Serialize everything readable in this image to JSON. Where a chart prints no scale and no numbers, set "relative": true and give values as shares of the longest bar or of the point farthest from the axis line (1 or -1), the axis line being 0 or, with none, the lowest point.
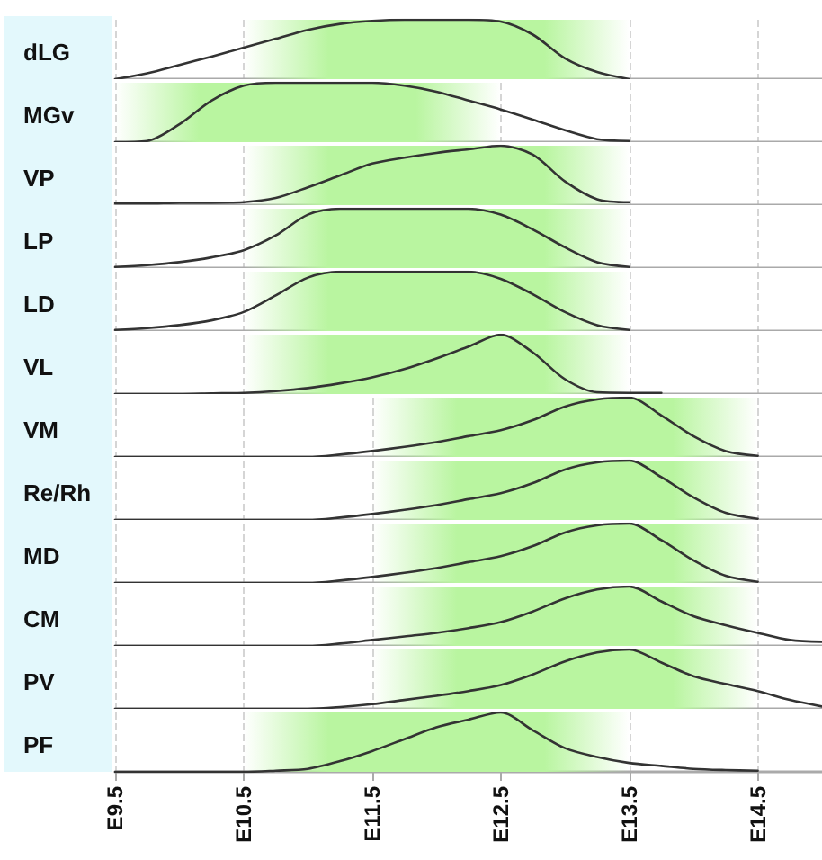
{
  "chart_data": [
    {
      "type": "line",
      "title": "dLG",
      "relative": true,
      "categories": [
        "E9.5",
        null,
        null,
        null,
        "E10.5",
        null,
        null,
        null,
        "E11.5",
        null,
        null,
        null,
        "E12.5",
        null,
        null,
        null,
        "E13.5",
        null,
        null,
        null,
        "E14.5",
        null,
        null
      ],
      "tick_labels": false,
      "grid": "x",
      "marker": "none",
      "line_style": "solid",
      "series": [
        {
          "color": "#333333",
          "values": [
            0,
            0.1,
            0.24,
            0.38,
            0.53,
            0.68,
            0.83,
            0.93,
            0.98,
            1,
            1,
            1,
            0.97,
            0.75,
            0.35,
            0.12,
            0,
            null,
            null,
            null,
            null,
            null,
            null
          ]
        }
      ],
      "bands": [
        {
          "axis": "x",
          "from": "E10.5",
          "to": "E13.5",
          "color": "#b9f5a0"
        }
      ]
    },
    {
      "type": "line",
      "title": "MGv",
      "relative": true,
      "categories": [
        "E9.5",
        null,
        null,
        null,
        "E10.5",
        null,
        null,
        null,
        "E11.5",
        null,
        null,
        null,
        "E12.5",
        null,
        null,
        null,
        "E13.5",
        null,
        null,
        null,
        "E14.5",
        null,
        null
      ],
      "tick_labels": false,
      "grid": "x",
      "marker": "none",
      "line_style": "solid",
      "series": [
        {
          "color": "#333333",
          "values": [
            0,
            0.02,
            0.3,
            0.7,
            0.95,
            1,
            1,
            1,
            1,
            0.95,
            0.85,
            0.7,
            0.55,
            0.38,
            0.2,
            0.05,
            0.02,
            null,
            null,
            null,
            null,
            null,
            null
          ]
        }
      ],
      "bands": [
        {
          "axis": "x",
          "from": "E9.5",
          "to": "E12.5",
          "color": "#b9f5a0"
        }
      ]
    },
    {
      "type": "line",
      "title": "VP",
      "relative": true,
      "categories": [
        "E9.5",
        null,
        null,
        null,
        "E10.5",
        null,
        null,
        null,
        "E11.5",
        null,
        null,
        null,
        "E12.5",
        null,
        null,
        null,
        "E13.5",
        null,
        null,
        null,
        "E14.5",
        null,
        null
      ],
      "tick_labels": false,
      "grid": "x",
      "marker": "none",
      "line_style": "solid",
      "series": [
        {
          "color": "#333333",
          "values": [
            0.03,
            0.03,
            0.04,
            0.04,
            0.05,
            0.12,
            0.3,
            0.5,
            0.7,
            0.8,
            0.88,
            0.94,
            1,
            0.85,
            0.4,
            0.1,
            0.05,
            null,
            null,
            null,
            null,
            null,
            null
          ]
        }
      ],
      "bands": [
        {
          "axis": "x",
          "from": "E10.5",
          "to": "E13.5",
          "color": "#b9f5a0"
        }
      ]
    },
    {
      "type": "line",
      "title": "LP",
      "relative": true,
      "categories": [
        "E9.5",
        null,
        null,
        null,
        "E10.5",
        null,
        null,
        null,
        "E11.5",
        null,
        null,
        null,
        "E12.5",
        null,
        null,
        null,
        "E13.5",
        null,
        null,
        null,
        "E14.5",
        null,
        null
      ],
      "tick_labels": false,
      "grid": "x",
      "marker": "none",
      "line_style": "solid",
      "series": [
        {
          "color": "#333333",
          "values": [
            0.02,
            0.05,
            0.1,
            0.18,
            0.3,
            0.55,
            0.9,
            1,
            1,
            1,
            1,
            1,
            0.9,
            0.65,
            0.35,
            0.1,
            0.02,
            null,
            null,
            null,
            null,
            null,
            null
          ]
        }
      ],
      "bands": [
        {
          "axis": "x",
          "from": "E10.5",
          "to": "E13.5",
          "color": "#b9f5a0"
        }
      ]
    },
    {
      "type": "line",
      "title": "LD",
      "relative": true,
      "categories": [
        "E9.5",
        null,
        null,
        null,
        "E10.5",
        null,
        null,
        null,
        "E11.5",
        null,
        null,
        null,
        "E12.5",
        null,
        null,
        null,
        "E13.5",
        null,
        null,
        null,
        "E14.5",
        null,
        null
      ],
      "tick_labels": false,
      "grid": "x",
      "marker": "none",
      "line_style": "solid",
      "series": [
        {
          "color": "#333333",
          "values": [
            0.02,
            0.05,
            0.1,
            0.18,
            0.32,
            0.6,
            0.9,
            1,
            1,
            1,
            1,
            1,
            0.88,
            0.62,
            0.32,
            0.1,
            0.02,
            null,
            null,
            null,
            null,
            null,
            null
          ]
        }
      ],
      "bands": [
        {
          "axis": "x",
          "from": "E10.5",
          "to": "E13.5",
          "color": "#b9f5a0"
        }
      ]
    },
    {
      "type": "line",
      "title": "VL",
      "relative": true,
      "categories": [
        "E9.5",
        null,
        null,
        null,
        "E10.5",
        null,
        null,
        null,
        "E11.5",
        null,
        null,
        null,
        "E12.5",
        null,
        null,
        null,
        "E13.5",
        null,
        null,
        null,
        "E14.5",
        null,
        null
      ],
      "tick_labels": false,
      "grid": "x",
      "marker": "none",
      "line_style": "solid",
      "series": [
        {
          "color": "#333333",
          "values": [
            0,
            0,
            0,
            0.01,
            0.02,
            0.05,
            0.1,
            0.18,
            0.28,
            0.42,
            0.6,
            0.8,
            1,
            0.7,
            0.25,
            0.03,
            0.02,
            0.02,
            null,
            null,
            null,
            null,
            null
          ]
        }
      ],
      "bands": [
        {
          "axis": "x",
          "from": "E10.5",
          "to": "E13.5",
          "color": "#b9f5a0"
        }
      ]
    },
    {
      "type": "line",
      "title": "VM",
      "relative": true,
      "categories": [
        "E9.5",
        null,
        null,
        null,
        "E10.5",
        null,
        null,
        null,
        "E11.5",
        null,
        null,
        null,
        "E12.5",
        null,
        null,
        null,
        "E13.5",
        null,
        null,
        null,
        "E14.5",
        null,
        null
      ],
      "tick_labels": false,
      "grid": "x",
      "marker": "none",
      "line_style": "solid",
      "series": [
        {
          "color": "#333333",
          "values": [
            0,
            0,
            0,
            0,
            0,
            0,
            0,
            0.04,
            0.1,
            0.17,
            0.25,
            0.35,
            0.45,
            0.62,
            0.85,
            0.97,
            1,
            0.7,
            0.35,
            0.1,
            0.02,
            null,
            null
          ]
        }
      ],
      "bands": [
        {
          "axis": "x",
          "from": "E11.5",
          "to": "E14.5",
          "color": "#b9f5a0"
        }
      ]
    },
    {
      "type": "line",
      "title": "Re/Rh",
      "relative": true,
      "categories": [
        "E9.5",
        null,
        null,
        null,
        "E10.5",
        null,
        null,
        null,
        "E11.5",
        null,
        null,
        null,
        "E12.5",
        null,
        null,
        null,
        "E13.5",
        null,
        null,
        null,
        "E14.5",
        null,
        null
      ],
      "tick_labels": false,
      "grid": "x",
      "marker": "none",
      "line_style": "solid",
      "series": [
        {
          "color": "#333333",
          "values": [
            0,
            0,
            0,
            0,
            0,
            0,
            0,
            0.04,
            0.1,
            0.17,
            0.25,
            0.35,
            0.45,
            0.62,
            0.85,
            0.97,
            1,
            0.72,
            0.38,
            0.12,
            0.02,
            null,
            null
          ]
        }
      ],
      "bands": [
        {
          "axis": "x",
          "from": "E11.5",
          "to": "E14.5",
          "color": "#b9f5a0"
        }
      ]
    },
    {
      "type": "line",
      "title": "MD",
      "relative": true,
      "categories": [
        "E9.5",
        null,
        null,
        null,
        "E10.5",
        null,
        null,
        null,
        "E11.5",
        null,
        null,
        null,
        "E12.5",
        null,
        null,
        null,
        "E13.5",
        null,
        null,
        null,
        "E14.5",
        null,
        null
      ],
      "tick_labels": false,
      "grid": "x",
      "marker": "none",
      "line_style": "solid",
      "series": [
        {
          "color": "#333333",
          "values": [
            0,
            0,
            0,
            0,
            0,
            0,
            0,
            0.04,
            0.1,
            0.17,
            0.25,
            0.35,
            0.45,
            0.62,
            0.85,
            0.97,
            1,
            0.72,
            0.38,
            0.12,
            0.02,
            null,
            null
          ]
        }
      ],
      "bands": [
        {
          "axis": "x",
          "from": "E11.5",
          "to": "E14.5",
          "color": "#b9f5a0"
        }
      ]
    },
    {
      "type": "line",
      "title": "CM",
      "relative": true,
      "categories": [
        "E9.5",
        null,
        null,
        null,
        "E10.5",
        null,
        null,
        null,
        "E11.5",
        null,
        null,
        null,
        "E12.5",
        null,
        null,
        null,
        "E13.5",
        null,
        null,
        null,
        "E14.5",
        null,
        null
      ],
      "tick_labels": false,
      "grid": "x",
      "marker": "none",
      "line_style": "solid",
      "series": [
        {
          "color": "#333333",
          "values": [
            0,
            0,
            0,
            0,
            0,
            0,
            0,
            0.04,
            0.1,
            0.16,
            0.22,
            0.3,
            0.4,
            0.58,
            0.8,
            0.95,
            1,
            0.75,
            0.5,
            0.35,
            0.22,
            0.1,
            0.07
          ]
        }
      ],
      "bands": [
        {
          "axis": "x",
          "from": "E11.5",
          "to": "E14.5",
          "color": "#b9f5a0"
        }
      ]
    },
    {
      "type": "line",
      "title": "PV",
      "relative": true,
      "categories": [
        "E9.5",
        null,
        null,
        null,
        "E10.5",
        null,
        null,
        null,
        "E11.5",
        null,
        null,
        null,
        "E12.5",
        null,
        null,
        null,
        "E13.5",
        null,
        null,
        null,
        "E14.5",
        null,
        null
      ],
      "tick_labels": false,
      "grid": "x",
      "marker": "none",
      "line_style": "solid",
      "series": [
        {
          "color": "#333333",
          "values": [
            0,
            0,
            0,
            0,
            0,
            0,
            0,
            0.03,
            0.08,
            0.15,
            0.22,
            0.3,
            0.4,
            0.58,
            0.8,
            0.95,
            1,
            0.78,
            0.55,
            0.42,
            0.3,
            0.15,
            0.04
          ]
        }
      ],
      "bands": [
        {
          "axis": "x",
          "from": "E11.5",
          "to": "E14.5",
          "color": "#b9f5a0"
        }
      ]
    },
    {
      "type": "line",
      "title": "PF",
      "relative": true,
      "categories": [
        "E9.5",
        null,
        null,
        null,
        "E10.5",
        null,
        null,
        null,
        "E11.5",
        null,
        null,
        null,
        "E12.5",
        null,
        null,
        null,
        "E13.5",
        null,
        null,
        null,
        "E14.5",
        null,
        null
      ],
      "tick_labels": "x",
      "grid": "x",
      "marker": "none",
      "line_style": "solid",
      "series": [
        {
          "color": "#333333",
          "values": [
            0,
            0,
            0,
            0,
            0,
            0.02,
            0.05,
            0.18,
            0.35,
            0.55,
            0.75,
            0.88,
            1,
            0.7,
            0.4,
            0.25,
            0.15,
            0.1,
            0.05,
            0.03,
            0.02,
            null,
            null
          ]
        }
      ],
      "bands": [
        {
          "axis": "x",
          "from": "E10.5",
          "to": "E13.5",
          "color": "#b9f5a0"
        }
      ]
    }
  ]
}
